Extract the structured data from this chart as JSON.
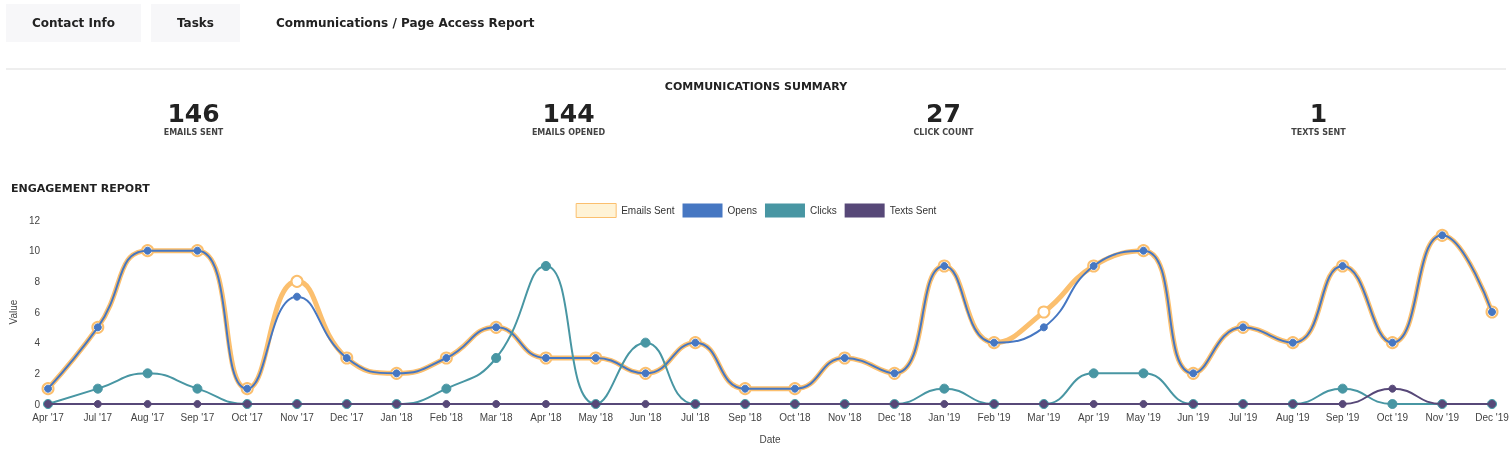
{
  "chart_data": [
    {
      "type": "other",
      "title": "COMMUNICATIONS SUMMARY",
      "categories": [
        "EMAILS SENT",
        "EMAILS OPENED",
        "CLICK COUNT",
        "TEXTS SENT"
      ],
      "values": [
        146,
        144,
        27,
        1
      ],
      "data_labels": true,
      "annotations": [
        "Contact Info",
        "Tasks",
        "Communications / Page Access Report"
      ]
    },
    {
      "type": "line",
      "title": "ENGAGEMENT REPORT",
      "xlabel": "Date",
      "ylabel": "Value",
      "categories": [
        "Apr '17",
        "Jul '17",
        "Aug '17",
        "Sep '17",
        "Oct '17",
        "Nov '17",
        "Dec '17",
        "Jan '18",
        "Feb '18",
        "Mar '18",
        "Apr '18",
        "May '18",
        "Jun '18",
        "Jul '18",
        "Sep '18",
        "Oct '18",
        "Nov '18",
        "Dec '18",
        "Jan '19",
        "Feb '19",
        "Mar '19",
        "Apr '19",
        "May '19",
        "Jun '19",
        "Jul '19",
        "Aug '19",
        "Sep '19",
        "Oct '19",
        "Nov '19",
        "Dec '19"
      ],
      "series": [
        {
          "name": "Emails Sent",
          "color": "#fbbf6e",
          "values": [
            1,
            5,
            10,
            10,
            1,
            8,
            3,
            2,
            3,
            5,
            3,
            3,
            2,
            4,
            1,
            1,
            3,
            2,
            9,
            4,
            6,
            9,
            10,
            2,
            5,
            4,
            9,
            4,
            11,
            6
          ]
        },
        {
          "name": "Opens",
          "color": "#4677c2",
          "values": [
            1,
            5,
            10,
            10,
            1,
            7,
            3,
            2,
            3,
            5,
            3,
            3,
            2,
            4,
            1,
            1,
            3,
            2,
            9,
            4,
            5,
            9,
            10,
            2,
            5,
            4,
            9,
            4,
            11,
            6
          ]
        },
        {
          "name": "Clicks",
          "color": "#4896a3",
          "values": [
            0,
            1,
            2,
            1,
            0,
            0,
            0,
            0,
            1,
            3,
            9,
            0,
            4,
            0,
            0,
            0,
            0,
            0,
            1,
            0,
            0,
            2,
            2,
            0,
            0,
            0,
            1,
            0,
            0,
            0
          ]
        },
        {
          "name": "Texts Sent",
          "color": "#574878",
          "values": [
            0,
            0,
            0,
            0,
            0,
            0,
            0,
            0,
            0,
            0,
            0,
            0,
            0,
            0,
            0,
            0,
            0,
            0,
            0,
            0,
            0,
            0,
            0,
            0,
            0,
            0,
            0,
            1,
            0,
            0
          ]
        }
      ],
      "ylim": [
        0,
        12
      ],
      "yticks": [
        0,
        2,
        4,
        6,
        8,
        10,
        12
      ],
      "grid": false,
      "legend": "top",
      "marker": "circle",
      "line_style": "solid"
    }
  ]
}
